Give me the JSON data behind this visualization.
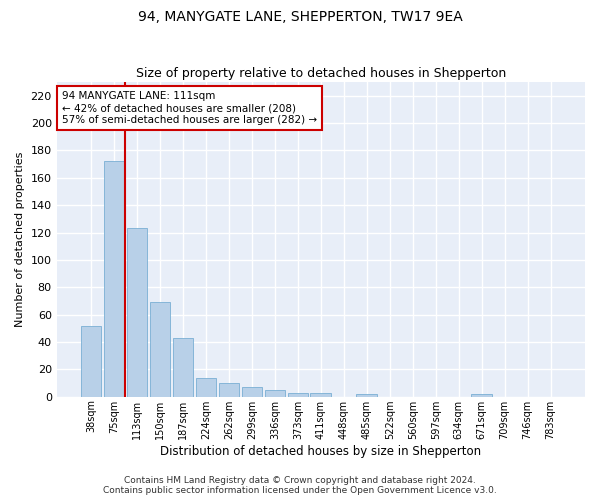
{
  "title": "94, MANYGATE LANE, SHEPPERTON, TW17 9EA",
  "subtitle": "Size of property relative to detached houses in Shepperton",
  "xlabel": "Distribution of detached houses by size in Shepperton",
  "ylabel": "Number of detached properties",
  "categories": [
    "38sqm",
    "75sqm",
    "113sqm",
    "150sqm",
    "187sqm",
    "224sqm",
    "262sqm",
    "299sqm",
    "336sqm",
    "373sqm",
    "411sqm",
    "448sqm",
    "485sqm",
    "522sqm",
    "560sqm",
    "597sqm",
    "634sqm",
    "671sqm",
    "709sqm",
    "746sqm",
    "783sqm"
  ],
  "values": [
    52,
    172,
    123,
    69,
    43,
    14,
    10,
    7,
    5,
    3,
    3,
    0,
    2,
    0,
    0,
    0,
    0,
    2,
    0,
    0,
    0
  ],
  "bar_color": "#b8d0e8",
  "bar_edge_color": "#7aafd4",
  "highlight_line_color": "#cc0000",
  "annotation_text": "94 MANYGATE LANE: 111sqm\n← 42% of detached houses are smaller (208)\n57% of semi-detached houses are larger (282) →",
  "annotation_box_color": "#ffffff",
  "annotation_box_edge_color": "#cc0000",
  "ylim": [
    0,
    230
  ],
  "yticks": [
    0,
    20,
    40,
    60,
    80,
    100,
    120,
    140,
    160,
    180,
    200,
    220
  ],
  "background_color": "#e8eef8",
  "grid_color": "#ffffff",
  "footer_line1": "Contains HM Land Registry data © Crown copyright and database right 2024.",
  "footer_line2": "Contains public sector information licensed under the Open Government Licence v3.0.",
  "title_fontsize": 10,
  "subtitle_fontsize": 9,
  "annotation_fontsize": 7.5,
  "footer_fontsize": 6.5
}
